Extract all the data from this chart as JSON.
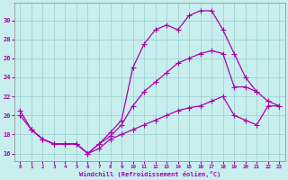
{
  "xlabel": "Windchill (Refroidissement éolien,°C)",
  "bg_color": "#c8eeee",
  "line_color": "#aa00aa",
  "grid_color": "#99cccc",
  "xlim": [
    -0.5,
    23.5
  ],
  "ylim": [
    15.2,
    31.8
  ],
  "yticks": [
    16,
    18,
    20,
    22,
    24,
    26,
    28,
    30
  ],
  "xticks": [
    0,
    1,
    2,
    3,
    4,
    5,
    6,
    7,
    8,
    9,
    10,
    11,
    12,
    13,
    14,
    15,
    16,
    17,
    18,
    19,
    20,
    21,
    22,
    23
  ],
  "lineA_x": [
    0,
    1,
    2,
    3,
    4,
    5,
    6,
    7,
    8,
    9,
    10,
    11,
    12,
    13,
    14,
    15,
    16,
    17,
    18,
    19,
    20,
    21
  ],
  "lineA_y": [
    20.5,
    18.5,
    17.5,
    17.0,
    17.0,
    17.0,
    16.0,
    17.0,
    18.2,
    19.5,
    25.0,
    27.5,
    29.0,
    29.5,
    29.0,
    30.5,
    31.0,
    31.0,
    29.0,
    26.5,
    24.0,
    22.5
  ],
  "lineB_x": [
    0,
    1,
    2,
    3,
    4,
    5,
    6,
    7,
    8,
    9,
    10,
    11,
    12,
    13,
    14,
    15,
    16,
    17,
    18,
    19,
    20,
    21,
    22,
    23
  ],
  "lineB_y": [
    20.0,
    18.5,
    17.5,
    17.0,
    17.0,
    17.0,
    16.0,
    17.0,
    17.8,
    19.0,
    21.0,
    22.5,
    23.5,
    24.5,
    25.5,
    26.0,
    26.5,
    26.8,
    26.5,
    23.0,
    23.0,
    22.5,
    21.5,
    21.0
  ],
  "lineC_x": [
    1,
    2,
    3,
    4,
    5,
    6,
    7,
    8,
    9,
    10,
    11,
    12,
    13,
    14,
    15,
    16,
    17,
    18,
    19,
    20,
    21,
    22,
    23
  ],
  "lineC_y": [
    18.5,
    17.5,
    17.0,
    17.0,
    17.0,
    16.0,
    16.5,
    17.5,
    18.0,
    18.5,
    19.0,
    19.5,
    20.0,
    20.5,
    20.8,
    21.0,
    21.5,
    22.0,
    20.0,
    19.5,
    19.0,
    21.0,
    21.0
  ]
}
